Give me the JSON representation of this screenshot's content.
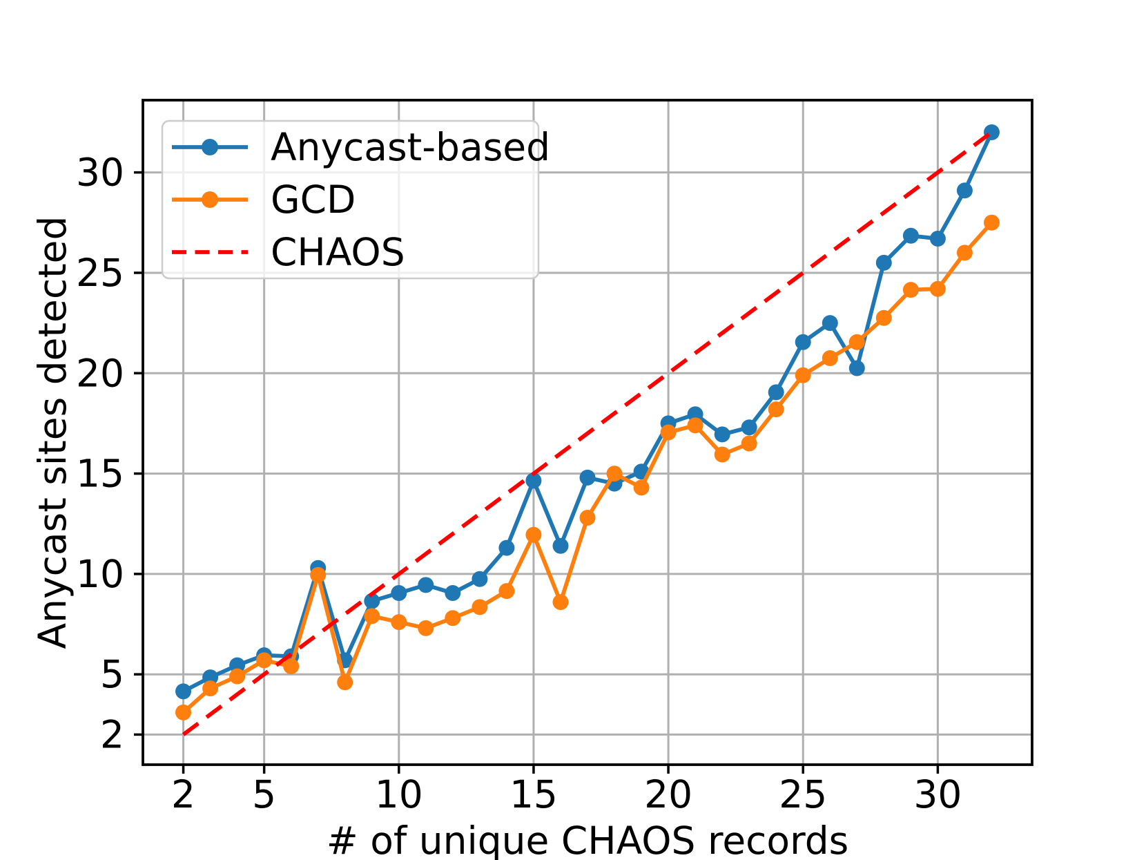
{
  "chart_data": {
    "type": "line",
    "xlabel": "# of unique CHAOS records",
    "ylabel": "Anycast sites detected",
    "xlim": [
      0.5,
      33.5
    ],
    "ylim": [
      0.5,
      33.6
    ],
    "xticks": [
      2,
      5,
      10,
      15,
      20,
      25,
      30
    ],
    "yticks": [
      2,
      5,
      10,
      15,
      20,
      25,
      30
    ],
    "grid": true,
    "grid_color": "#b0b0b0",
    "axis_color": "#000000",
    "legend_position": "upper left",
    "legend_frame_color": "#cccccc",
    "x": [
      2,
      3,
      4,
      5,
      6,
      7,
      8,
      9,
      10,
      11,
      12,
      13,
      14,
      15,
      16,
      17,
      18,
      19,
      20,
      21,
      22,
      23,
      24,
      25,
      26,
      27,
      28,
      29,
      30,
      31,
      32
    ],
    "series": [
      {
        "name": "Anycast-based",
        "color": "#1f77b4",
        "linestyle": "solid",
        "marker": "circle",
        "values": [
          4.15,
          4.85,
          5.45,
          5.95,
          5.9,
          10.3,
          5.7,
          8.65,
          9.05,
          9.45,
          9.05,
          9.75,
          11.3,
          14.65,
          11.4,
          14.8,
          14.5,
          15.1,
          17.5,
          17.95,
          16.95,
          17.3,
          19.05,
          21.55,
          22.5,
          20.25,
          25.5,
          26.85,
          26.7,
          29.1,
          32.0
        ]
      },
      {
        "name": "GCD",
        "color": "#ff7f0e",
        "linestyle": "solid",
        "marker": "circle",
        "values": [
          3.1,
          4.3,
          4.9,
          5.7,
          5.4,
          9.95,
          4.6,
          7.9,
          7.6,
          7.3,
          7.8,
          8.35,
          9.15,
          11.95,
          8.6,
          12.8,
          15.0,
          14.3,
          17.05,
          17.4,
          15.95,
          16.5,
          18.2,
          19.9,
          20.75,
          21.55,
          22.75,
          24.15,
          24.2,
          26.0,
          27.5
        ]
      },
      {
        "name": "CHAOS",
        "color": "#ff0000",
        "linestyle": "dashed",
        "marker": "none",
        "x": [
          2,
          32
        ],
        "values": [
          2,
          32
        ]
      }
    ]
  }
}
